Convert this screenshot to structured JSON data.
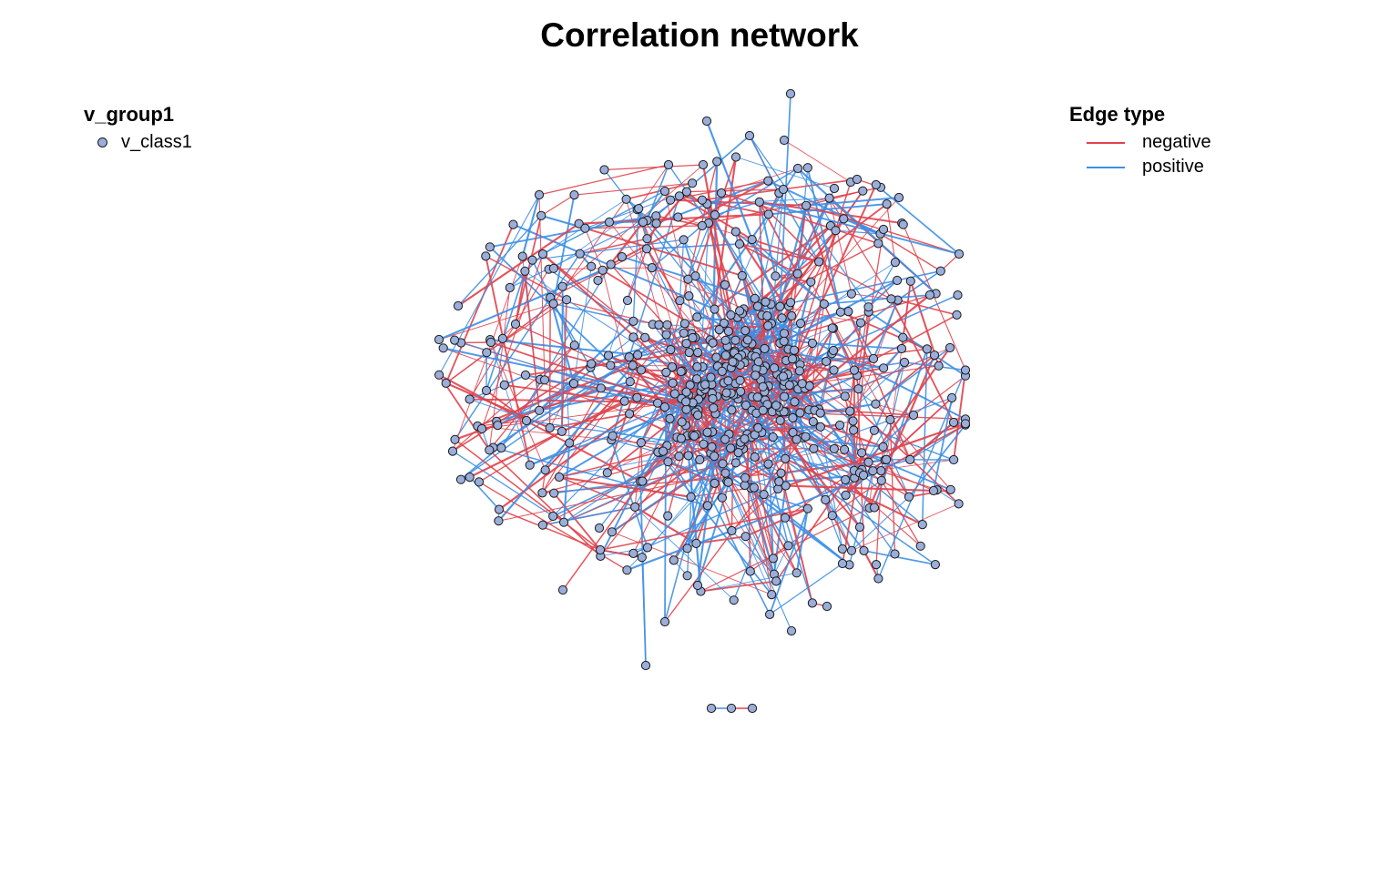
{
  "title": "Correlation network",
  "node_legend": {
    "title": "v_group1",
    "items": [
      {
        "label": "v_class1",
        "color": "#9aaed9"
      }
    ]
  },
  "edge_legend": {
    "title": "Edge type",
    "items": [
      {
        "label": "negative",
        "color": "#e0424c"
      },
      {
        "label": "positive",
        "color": "#3c8fe6"
      }
    ]
  },
  "colors": {
    "node_fill": "#9aaed9",
    "node_stroke": "#1a1a1a",
    "negative": "#e0424c",
    "positive": "#3c8fe6",
    "background": "#ffffff"
  }
}
